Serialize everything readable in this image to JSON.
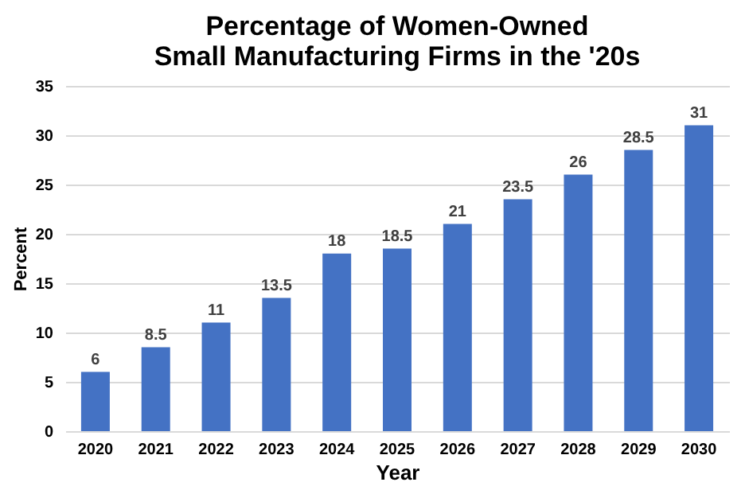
{
  "chart_data": {
    "type": "bar",
    "title": "Percentage of Women-Owned\nSmall Manufacturing Firms in the '20s",
    "xlabel": "Year",
    "ylabel": "Percent",
    "categories": [
      "2020",
      "2021",
      "2022",
      "2023",
      "2024",
      "2025",
      "2026",
      "2027",
      "2028",
      "2029",
      "2030"
    ],
    "values": [
      6,
      8.5,
      11,
      13.5,
      18,
      18.5,
      21,
      23.5,
      26,
      28.5,
      31
    ],
    "color": "#4472c4",
    "ylim": [
      0,
      35
    ],
    "yticks": [
      0,
      5,
      10,
      15,
      20,
      25,
      30,
      35
    ],
    "grid": "y",
    "data_labels": true
  }
}
